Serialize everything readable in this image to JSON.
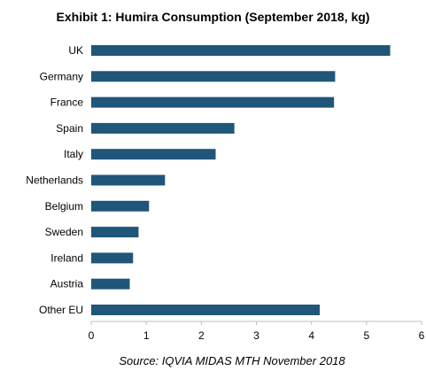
{
  "chart_data": {
    "type": "bar",
    "orientation": "horizontal",
    "title": "Exhibit 1: Humira Consumption (September 2018, kg)",
    "categories": [
      "UK",
      "Germany",
      "France",
      "Spain",
      "Italy",
      "Netherlands",
      "Belgium",
      "Sweden",
      "Ireland",
      "Austria",
      "Other EU"
    ],
    "values": [
      5.43,
      4.43,
      4.41,
      2.6,
      2.26,
      1.34,
      1.05,
      0.86,
      0.76,
      0.7,
      4.15
    ],
    "xlim": [
      0,
      6
    ],
    "xticks": [
      "0",
      "1",
      "2",
      "3",
      "4",
      "5",
      "6"
    ],
    "grid": false,
    "bar_color": "#1f567a",
    "source": "Source: IQVIA MIDAS MTH November 2018"
  }
}
